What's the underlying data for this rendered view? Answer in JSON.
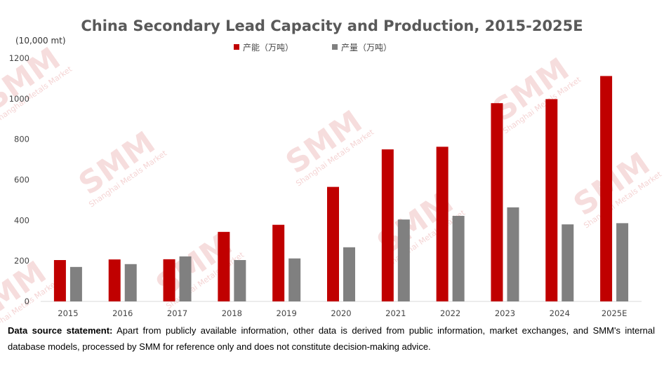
{
  "chart_data": {
    "type": "bar",
    "title": "China Secondary Lead Capacity and Production, 2015-2025E",
    "ylabel": "(10,000 mt)",
    "xlabel": "",
    "ylim": [
      0,
      1200
    ],
    "yticks": [
      0,
      200,
      400,
      600,
      800,
      1000,
      1200
    ],
    "grid": false,
    "legend_position": "top-center",
    "categories": [
      "2015",
      "2016",
      "2017",
      "2018",
      "2019",
      "2020",
      "2021",
      "2022",
      "2023",
      "2024",
      "2025E"
    ],
    "series": [
      {
        "name": "产能（万吨）",
        "color": "#c00000",
        "values": [
          204,
          207,
          208,
          343,
          378,
          565,
          750,
          763,
          978,
          998,
          1112
        ]
      },
      {
        "name": "产量（万吨）",
        "color": "#808080",
        "values": [
          170,
          184,
          222,
          204,
          212,
          267,
          404,
          422,
          464,
          380,
          386
        ]
      }
    ]
  },
  "watermark": {
    "text": "SMM",
    "subtext": "Shanghai Metals Market"
  },
  "source": {
    "label": "Data source statement:",
    "text": "Apart from publicly available information, other data is derived from public information, market exchanges, and SMM's internal database models, processed by SMM for reference only and does not constitute decision-making advice."
  }
}
